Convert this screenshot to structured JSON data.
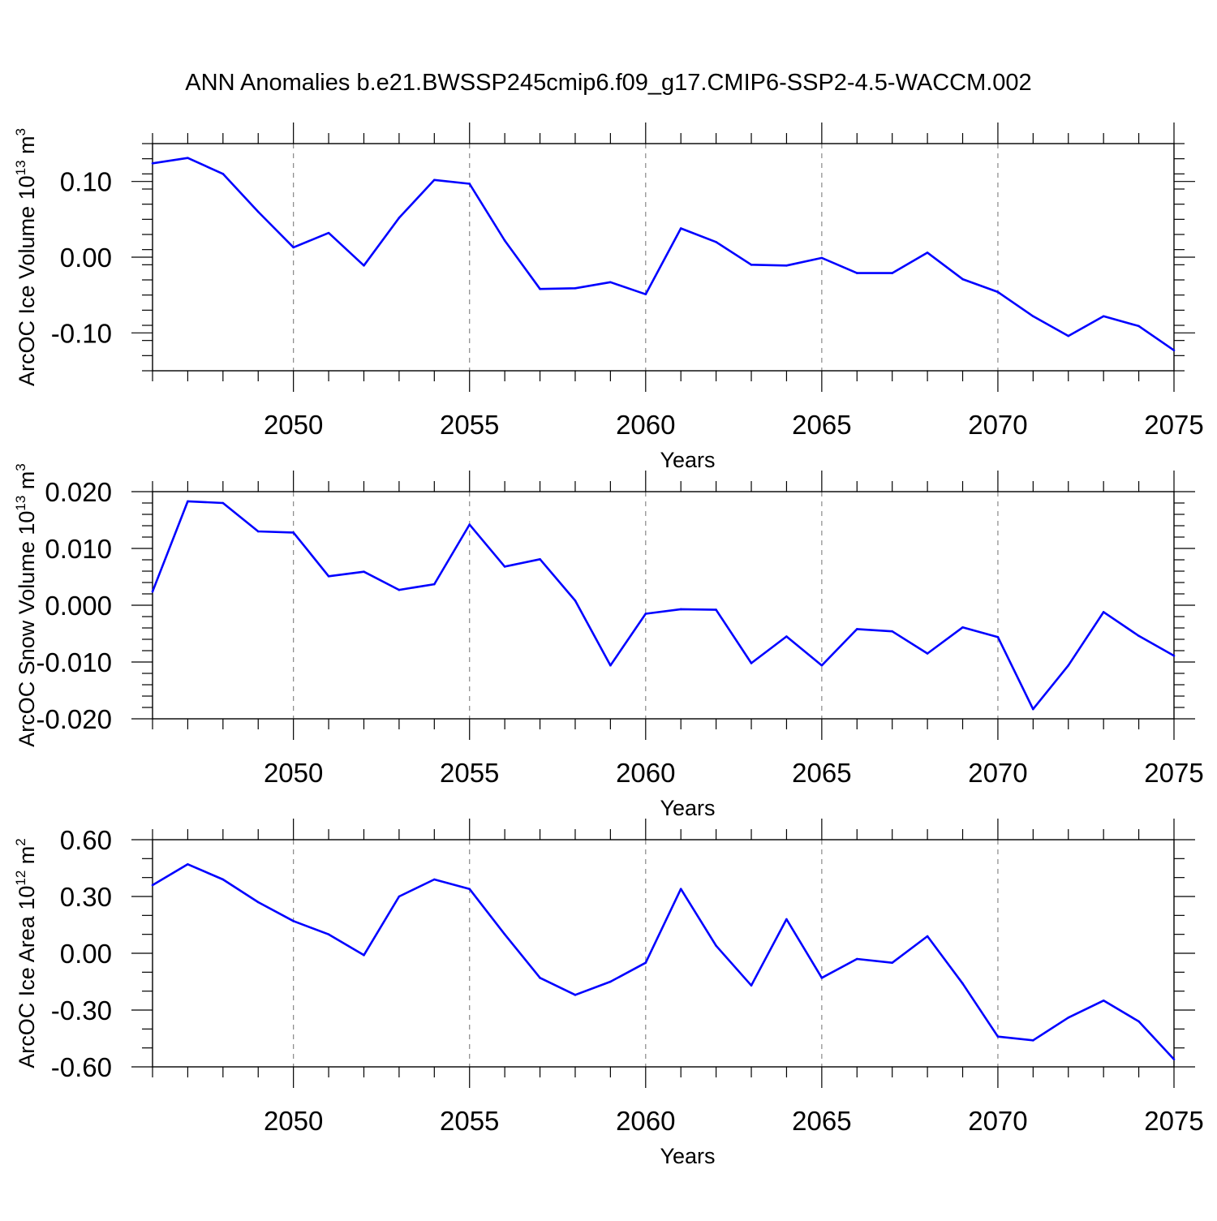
{
  "title": "ANN Anomalies b.e21.BWSSP245cmip6.f09_g17.CMIP6-SSP2-4.5-WACCM.002",
  "line_color": "#0000ff",
  "chart_data": [
    {
      "type": "line",
      "xlabel": "Years",
      "ylabel_base": "ArcOC Ice Volume 10",
      "ylabel_exp": "13",
      "ylabel_unit": " m",
      "ylabel_unit_exp": "3",
      "xlim": [
        2046,
        2075
      ],
      "ylim": [
        -0.15,
        0.15
      ],
      "x_ticks": [
        2050,
        2055,
        2060,
        2065,
        2070,
        2075
      ],
      "x_tick_labels": [
        "2050",
        "2055",
        "2060",
        "2065",
        "2070",
        "2075"
      ],
      "y_ticks": [
        0.1,
        0.0,
        -0.1
      ],
      "y_tick_labels": [
        "0.10",
        "0.00",
        "-0.10"
      ],
      "y_minor_step": 0.02,
      "grid": "vertical dashed at major x ticks",
      "x": [
        2046,
        2047,
        2048,
        2049,
        2050,
        2051,
        2052,
        2053,
        2054,
        2055,
        2056,
        2057,
        2058,
        2059,
        2060,
        2061,
        2062,
        2063,
        2064,
        2065,
        2066,
        2067,
        2068,
        2069,
        2070,
        2071,
        2072,
        2073,
        2074,
        2075
      ],
      "values": [
        0.124,
        0.131,
        0.11,
        0.06,
        0.013,
        0.032,
        -0.011,
        0.052,
        0.102,
        0.097,
        0.022,
        -0.042,
        -0.041,
        -0.033,
        -0.049,
        0.038,
        0.02,
        -0.01,
        -0.011,
        -0.001,
        -0.021,
        -0.021,
        0.006,
        -0.029,
        -0.046,
        -0.078,
        -0.104,
        -0.078,
        -0.091,
        -0.123
      ]
    },
    {
      "type": "line",
      "xlabel": "Years",
      "ylabel_base": "ArcOC Snow Volume 10",
      "ylabel_exp": "13",
      "ylabel_unit": " m",
      "ylabel_unit_exp": "3",
      "xlim": [
        2046,
        2075
      ],
      "ylim": [
        -0.02,
        0.02
      ],
      "x_ticks": [
        2050,
        2055,
        2060,
        2065,
        2070,
        2075
      ],
      "x_tick_labels": [
        "2050",
        "2055",
        "2060",
        "2065",
        "2070",
        "2075"
      ],
      "y_ticks": [
        0.02,
        0.01,
        0.0,
        -0.01,
        -0.02
      ],
      "y_tick_labels": [
        "0.020",
        "0.010",
        "0.000",
        "-0.010",
        "-0.020"
      ],
      "y_minor_step": 0.002,
      "grid": "vertical dashed at major x ticks",
      "x": [
        2046,
        2047,
        2048,
        2049,
        2050,
        2051,
        2052,
        2053,
        2054,
        2055,
        2056,
        2057,
        2058,
        2059,
        2060,
        2061,
        2062,
        2063,
        2064,
        2065,
        2066,
        2067,
        2068,
        2069,
        2070,
        2071,
        2072,
        2073,
        2074,
        2075
      ],
      "values": [
        0.0024,
        0.0183,
        0.018,
        0.013,
        0.0128,
        0.0051,
        0.0059,
        0.0027,
        0.0037,
        0.0142,
        0.0068,
        0.0081,
        0.0008,
        -0.0106,
        -0.0015,
        -0.0007,
        -0.0008,
        -0.0102,
        -0.0055,
        -0.0106,
        -0.0042,
        -0.0046,
        -0.0085,
        -0.0039,
        -0.0056,
        -0.0183,
        -0.0106,
        -0.0012,
        -0.0054,
        -0.0089
      ]
    },
    {
      "type": "line",
      "xlabel": "Years",
      "ylabel_base": "ArcOC Ice Area 10",
      "ylabel_exp": "12",
      "ylabel_unit": " m",
      "ylabel_unit_exp": "2",
      "xlim": [
        2046,
        2075
      ],
      "ylim": [
        -0.6,
        0.6
      ],
      "x_ticks": [
        2050,
        2055,
        2060,
        2065,
        2070,
        2075
      ],
      "x_tick_labels": [
        "2050",
        "2055",
        "2060",
        "2065",
        "2070",
        "2075"
      ],
      "y_ticks": [
        0.6,
        0.3,
        0.0,
        -0.3,
        -0.6
      ],
      "y_tick_labels": [
        "0.60",
        "0.30",
        "0.00",
        "-0.30",
        "-0.60"
      ],
      "y_minor_step": 0.1,
      "grid": "vertical dashed at major x ticks",
      "x": [
        2046,
        2047,
        2048,
        2049,
        2050,
        2051,
        2052,
        2053,
        2054,
        2055,
        2056,
        2057,
        2058,
        2059,
        2060,
        2061,
        2062,
        2063,
        2064,
        2065,
        2066,
        2067,
        2068,
        2069,
        2070,
        2071,
        2072,
        2073,
        2074,
        2075
      ],
      "values": [
        0.36,
        0.47,
        0.39,
        0.27,
        0.17,
        0.1,
        -0.01,
        0.3,
        0.39,
        0.34,
        0.1,
        -0.13,
        -0.22,
        -0.15,
        -0.05,
        0.34,
        0.04,
        -0.17,
        0.18,
        -0.13,
        -0.03,
        -0.05,
        0.09,
        -0.16,
        -0.44,
        -0.46,
        -0.34,
        -0.25,
        -0.36,
        -0.56
      ]
    }
  ]
}
